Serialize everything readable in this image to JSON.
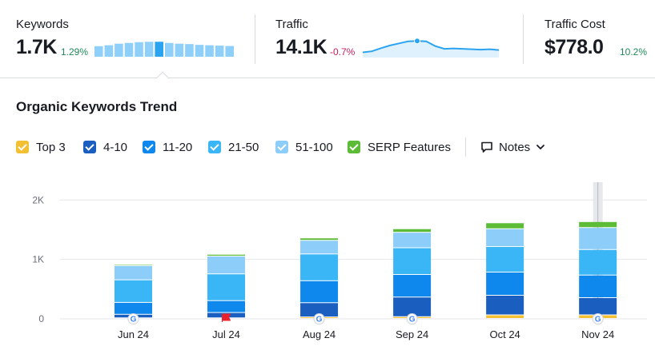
{
  "metrics": {
    "keywords": {
      "label": "Keywords",
      "value": "1.7K",
      "delta": "1.29%",
      "trend": [
        0.55,
        0.6,
        0.68,
        0.72,
        0.76,
        0.78,
        0.78,
        0.72,
        0.68,
        0.66,
        0.62,
        0.6,
        0.58,
        0.56
      ],
      "selected_bar": 6
    },
    "traffic": {
      "label": "Traffic",
      "value": "14.1K",
      "delta": "-0.7%",
      "trend": [
        0.25,
        0.3,
        0.45,
        0.58,
        0.68,
        0.78,
        0.8,
        0.78,
        0.55,
        0.42,
        0.44,
        0.42,
        0.4,
        0.38,
        0.4,
        0.36
      ],
      "marker_index": 6
    },
    "traffic_cost": {
      "label": "Traffic Cost",
      "value": "$778.0",
      "delta": "10.2%"
    }
  },
  "section_title": "Organic Keywords Trend",
  "legend": [
    {
      "label": "Top 3",
      "color": "#f3c033"
    },
    {
      "label": "4-10",
      "color": "#1a5fc0"
    },
    {
      "label": "11-20",
      "color": "#0e88ec"
    },
    {
      "label": "21-50",
      "color": "#3ab5f6"
    },
    {
      "label": "51-100",
      "color": "#8dcdf9"
    },
    {
      "label": "SERP Features",
      "color": "#5cbc37"
    }
  ],
  "notes_button": {
    "label": "Notes",
    "icon": "note-icon"
  },
  "chart_data": {
    "type": "bar",
    "stacked": true,
    "categories": [
      "Jun 24",
      "Jul 24",
      "Aug 24",
      "Sep 24",
      "Oct 24",
      "Nov 24"
    ],
    "series": [
      {
        "name": "Top 3",
        "color": "#f3c033",
        "values": [
          10,
          10,
          25,
          30,
          60,
          60
        ]
      },
      {
        "name": "4-10",
        "color": "#1a5fc0",
        "values": [
          60,
          90,
          240,
          330,
          330,
          290
        ]
      },
      {
        "name": "11-20",
        "color": "#0e88ec",
        "values": [
          200,
          200,
          370,
          380,
          390,
          380
        ]
      },
      {
        "name": "21-50",
        "color": "#3ab5f6",
        "values": [
          380,
          450,
          450,
          450,
          430,
          430
        ]
      },
      {
        "name": "51-100",
        "color": "#8dcdf9",
        "values": [
          240,
          300,
          230,
          260,
          300,
          370
        ]
      },
      {
        "name": "SERP Features",
        "color": "#5cbc37",
        "values": [
          20,
          30,
          40,
          60,
          100,
          100
        ]
      }
    ],
    "ylim": [
      0,
      2300
    ],
    "yticks": [
      0,
      1000,
      2000
    ],
    "ytick_labels": [
      "0",
      "1K",
      "2K"
    ],
    "grid": true,
    "markers": [
      "google-icon",
      "flag-icon",
      "google-icon",
      "google-icon",
      "",
      "google-icon"
    ],
    "highlighted_index": 5,
    "marker_color": "#e8212d"
  }
}
